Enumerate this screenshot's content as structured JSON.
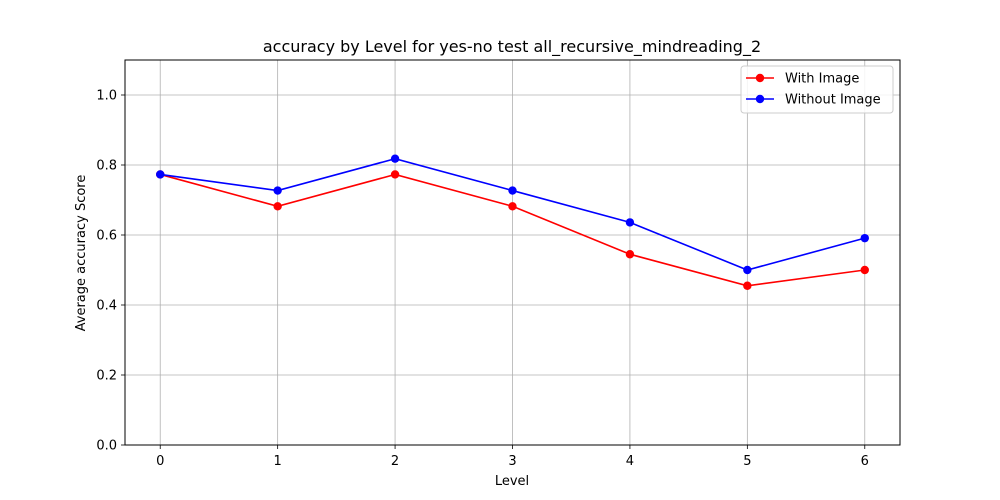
{
  "chart_data": {
    "type": "line",
    "title": "accuracy by Level for yes-no test all_recursive_mindreading_2",
    "xlabel": "Level",
    "ylabel": "Average accuracy Score",
    "x": [
      0,
      1,
      2,
      3,
      4,
      5,
      6
    ],
    "xlim": [
      -0.3,
      6.3
    ],
    "ylim": [
      0.0,
      1.1
    ],
    "xticks": [
      "0",
      "1",
      "2",
      "3",
      "4",
      "5",
      "6"
    ],
    "yticks": [
      0.0,
      0.2,
      0.4,
      0.6,
      0.8,
      1.0
    ],
    "ytick_labels": [
      "0.0",
      "0.2",
      "0.4",
      "0.6",
      "0.8",
      "1.0"
    ],
    "grid": true,
    "legend_position": "top-right",
    "series": [
      {
        "name": "With Image",
        "color": "#ff0000",
        "marker": "circle",
        "values": [
          0.773,
          0.682,
          0.773,
          0.682,
          0.545,
          0.455,
          0.5
        ]
      },
      {
        "name": "Without Image",
        "color": "#0000ff",
        "marker": "circle",
        "values": [
          0.773,
          0.727,
          0.818,
          0.727,
          0.636,
          0.5,
          0.591
        ]
      }
    ]
  }
}
